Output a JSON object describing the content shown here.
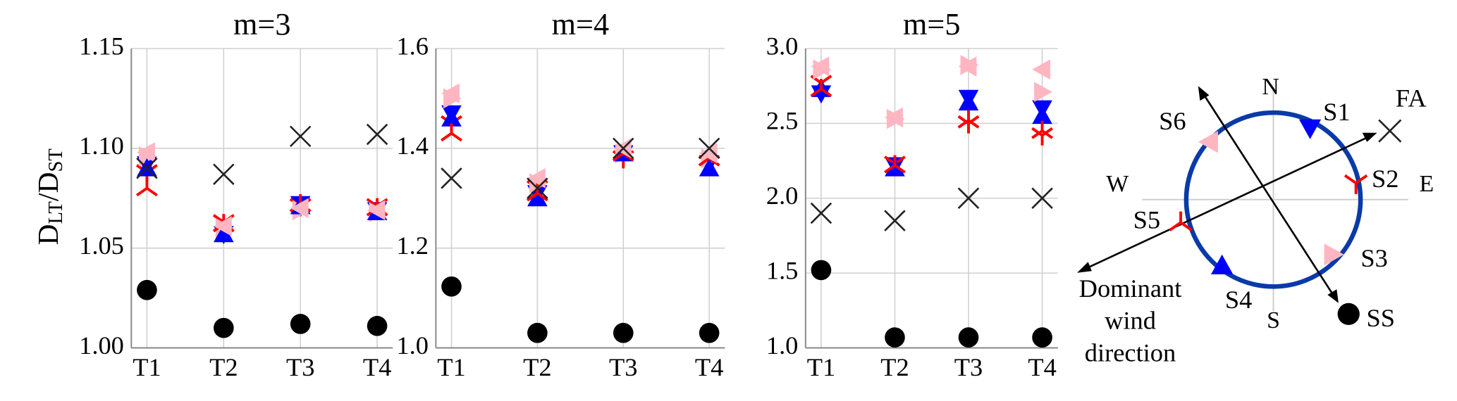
{
  "chart_data": [
    {
      "type": "scatter",
      "title": "m=3",
      "ylabel": [
        "D",
        "LT",
        "/D",
        "ST"
      ],
      "categories": [
        "T1",
        "T2",
        "T3",
        "T4"
      ],
      "ylim": [
        1.0,
        1.15
      ],
      "yticks": [
        {
          "value": 1.0,
          "label": "1.00"
        },
        1.05,
        {
          "value": 1.1,
          "label": "1.10"
        },
        1.15
      ],
      "grid": true,
      "series": [
        {
          "name": "S1",
          "color": "#0000ff",
          "marker": "v",
          "values": [
            1.092,
            1.057,
            1.072,
            1.069
          ]
        },
        {
          "name": "S2",
          "color": "#ff0000",
          "marker": "Y",
          "values": [
            1.088,
            1.063,
            1.071,
            1.071
          ]
        },
        {
          "name": "S3",
          "color": "#ffb6c1",
          "marker": ">",
          "values": [
            1.096,
            1.06,
            1.069,
            1.068
          ]
        },
        {
          "name": "S4",
          "color": "#0000ff",
          "marker": "^",
          "values": [
            1.09,
            1.057,
            1.071,
            1.068
          ]
        },
        {
          "name": "S5",
          "color": "#ff0000",
          "marker": "iY",
          "values": [
            1.08,
            1.062,
            1.072,
            1.07
          ]
        },
        {
          "name": "S6",
          "color": "#ffb6c1",
          "marker": "<",
          "values": [
            1.098,
            1.061,
            1.07,
            1.069
          ]
        },
        {
          "name": "FA",
          "color": "#222222",
          "marker": "x",
          "values": [
            1.09,
            1.087,
            1.106,
            1.107
          ]
        },
        {
          "name": "SS",
          "color": "#000000",
          "marker": "o",
          "values": [
            1.029,
            1.01,
            1.012,
            1.011
          ]
        }
      ]
    },
    {
      "type": "scatter",
      "title": "m=4",
      "categories": [
        "T1",
        "T2",
        "T3",
        "T4"
      ],
      "ylim": [
        1.0,
        1.6
      ],
      "yticks": [
        {
          "value": 1.0,
          "label": "1.0"
        },
        1.2,
        1.4,
        1.6
      ],
      "grid": true,
      "series": [
        {
          "values": [
            1.47,
            1.31,
            1.39,
            1.37
          ]
        },
        {
          "values": [
            1.45,
            1.32,
            1.38,
            1.37
          ]
        },
        {
          "values": [
            1.5,
            1.33,
            1.39,
            1.38
          ]
        },
        {
          "values": [
            1.46,
            1.3,
            1.39,
            1.36
          ]
        },
        {
          "values": [
            1.43,
            1.31,
            1.39,
            1.38
          ]
        },
        {
          "values": [
            1.51,
            1.34,
            1.4,
            1.39
          ]
        },
        {
          "values": [
            1.34,
            1.32,
            1.4,
            1.4
          ]
        },
        {
          "values": [
            1.123,
            1.03,
            1.03,
            1.03
          ]
        }
      ]
    },
    {
      "type": "scatter",
      "title": "m=5",
      "categories": [
        "T1",
        "T2",
        "T3",
        "T4"
      ],
      "ylim": [
        1.0,
        3.0
      ],
      "yticks": [
        {
          "value": 1.0,
          "label": "1.0"
        },
        1.5,
        {
          "value": 2.0,
          "label": "2.0"
        },
        2.5,
        {
          "value": 3.0,
          "label": "3.0"
        }
      ],
      "grid": true,
      "series": [
        {
          "values": [
            2.7,
            2.22,
            2.67,
            2.6
          ]
        },
        {
          "values": [
            2.77,
            2.23,
            2.5,
            2.42
          ]
        },
        {
          "values": [
            2.86,
            2.53,
            2.89,
            2.71
          ]
        },
        {
          "values": [
            2.73,
            2.2,
            2.64,
            2.55
          ]
        },
        {
          "values": [
            2.73,
            2.22,
            2.52,
            2.45
          ]
        },
        {
          "values": [
            2.88,
            2.54,
            2.88,
            2.86
          ]
        },
        {
          "values": [
            1.9,
            1.85,
            2.0,
            2.0
          ]
        },
        {
          "values": [
            1.52,
            1.07,
            1.07,
            1.07
          ]
        }
      ]
    }
  ],
  "diagram": {
    "compass": [
      "N",
      "E",
      "S",
      "W"
    ],
    "wind_label": [
      "Dominant",
      "wind",
      "direction"
    ]
  }
}
